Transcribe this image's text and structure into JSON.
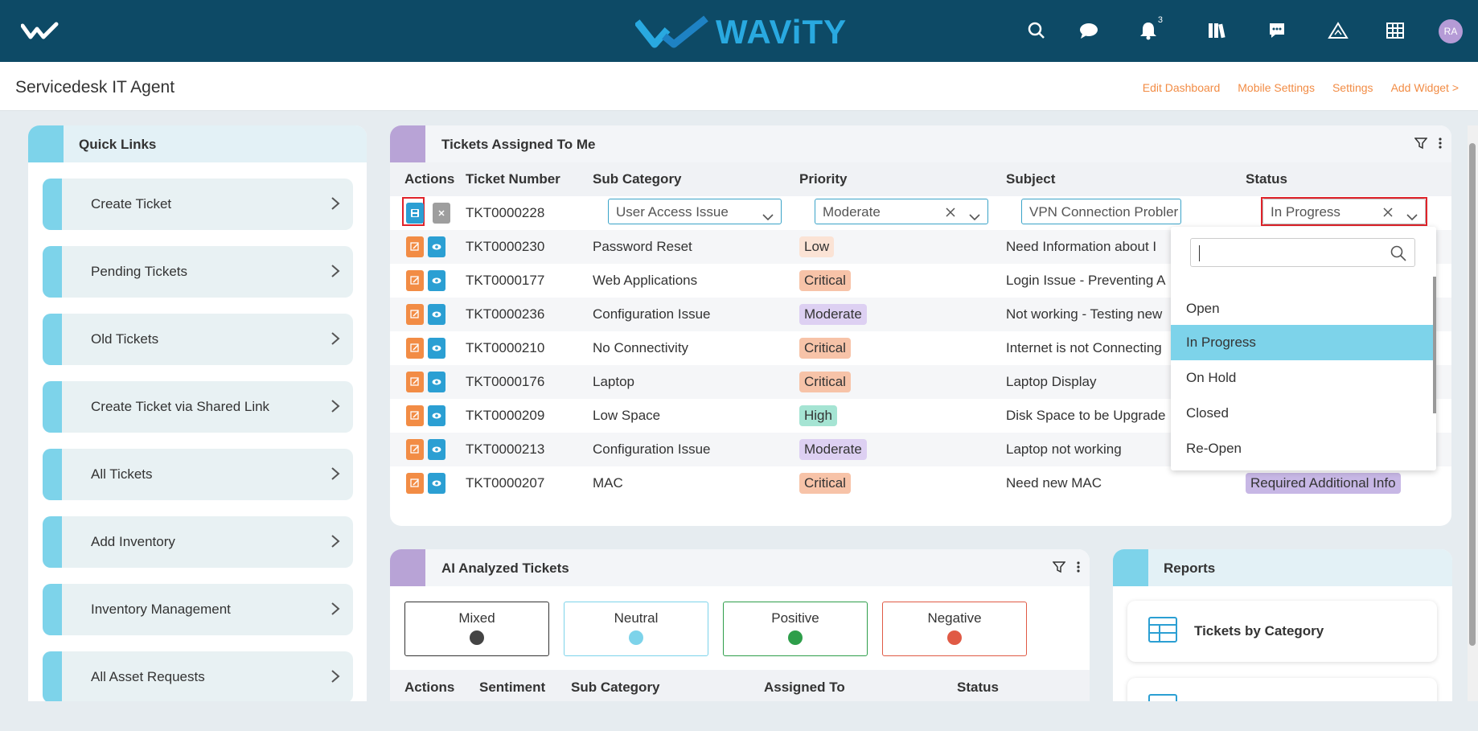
{
  "app": {
    "brand": "WAViTY",
    "notification_count": "3",
    "avatar_initials": "RA"
  },
  "header": {
    "page_title": "Servicedesk IT Agent",
    "links": [
      "Edit Dashboard",
      "Mobile Settings",
      "Settings",
      "Add Widget >"
    ]
  },
  "quick_links": {
    "title": "Quick Links",
    "items": [
      "Create Ticket",
      "Pending Tickets",
      "Old Tickets",
      "Create Ticket via Shared Link",
      "All Tickets",
      "Add Inventory",
      "Inventory Management",
      "All Asset Requests"
    ]
  },
  "tickets": {
    "title": "Tickets Assigned To Me",
    "columns": [
      "Actions",
      "Ticket Number",
      "Sub Category",
      "Priority",
      "Subject",
      "Status"
    ],
    "editing_row": {
      "ticket": "TKT0000228",
      "sub_category": "User Access Issue",
      "priority": "Moderate",
      "subject": "VPN Connection Probler",
      "status": "In Progress"
    },
    "rows": [
      {
        "ticket": "TKT0000230",
        "sub_category": "Password Reset",
        "priority": "Low",
        "subject": "Need Information about I",
        "status": ""
      },
      {
        "ticket": "TKT0000177",
        "sub_category": "Web Applications",
        "priority": "Critical",
        "subject": "Login Issue - Preventing A",
        "status": ""
      },
      {
        "ticket": "TKT0000236",
        "sub_category": "Configuration Issue",
        "priority": "Moderate",
        "subject": "Not working - Testing new",
        "status": ""
      },
      {
        "ticket": "TKT0000210",
        "sub_category": "No Connectivity",
        "priority": "Critical",
        "subject": "Internet is not Connecting",
        "status": ""
      },
      {
        "ticket": "TKT0000176",
        "sub_category": "Laptop",
        "priority": "Critical",
        "subject": "Laptop Display",
        "status": ""
      },
      {
        "ticket": "TKT0000209",
        "sub_category": "Low Space",
        "priority": "High",
        "subject": "Disk Space to be Upgrade",
        "status": ""
      },
      {
        "ticket": "TKT0000213",
        "sub_category": "Configuration Issue",
        "priority": "Moderate",
        "subject": "Laptop not working",
        "status": ""
      },
      {
        "ticket": "TKT0000207",
        "sub_category": "MAC",
        "priority": "Critical",
        "subject": "Need new MAC",
        "status": "Required Additional Info"
      }
    ],
    "status_options": [
      "Open",
      "In Progress",
      "On Hold",
      "Closed",
      "Re-Open"
    ],
    "status_selected": "In Progress"
  },
  "ai_tickets": {
    "title": "AI Analyzed Tickets",
    "sentiments": [
      "Mixed",
      "Neutral",
      "Positive",
      "Negative"
    ],
    "columns": [
      "Actions",
      "Sentiment",
      "Sub Category",
      "Assigned To",
      "Status"
    ]
  },
  "reports": {
    "title": "Reports",
    "items": [
      "Tickets by Category"
    ]
  },
  "colors": {
    "topbar": "#0d4a66",
    "accent_orange": "#f28c45",
    "accent_blue": "#2b9fd3",
    "cyan": "#7dd3ea",
    "purple": "#b8a3d6"
  }
}
